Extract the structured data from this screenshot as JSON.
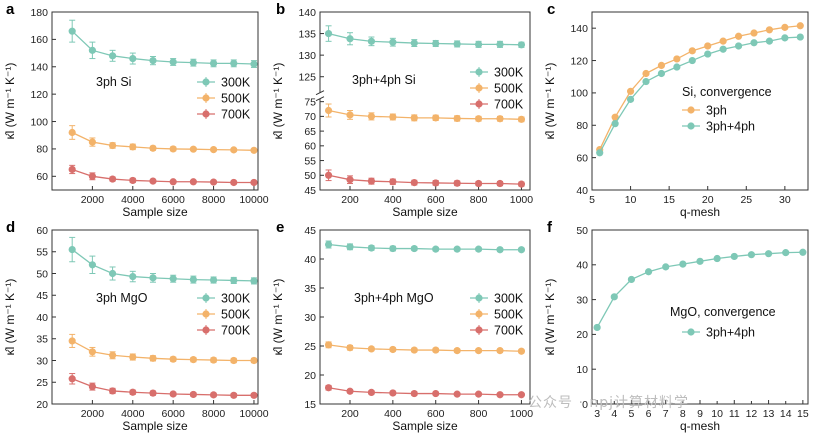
{
  "watermark": "公众号 · npj计算材料学",
  "colors": {
    "300K": "#7ec8b6",
    "500K": "#f3b36a",
    "700K": "#d86f6c",
    "3ph": "#f3b36a",
    "3ph+4ph": "#7ec8b6"
  },
  "chart_data": [
    {
      "id": "a",
      "type": "scatter",
      "panel_label": "a",
      "ylabel": "κ̂l (W m⁻¹ K⁻¹)",
      "xlabel": "Sample size",
      "xlim": [
        0,
        10200
      ],
      "ylim": [
        50,
        180
      ],
      "xticks": [
        2000,
        4000,
        6000,
        8000,
        10000
      ],
      "yticks": [
        60,
        80,
        100,
        120,
        140,
        160,
        180
      ],
      "annotation": "3ph Si",
      "legend_position": "right",
      "series": [
        {
          "name": "300K",
          "color": "#7ec8b6",
          "x": [
            1000,
            2000,
            3000,
            4000,
            5000,
            6000,
            7000,
            8000,
            9000,
            10000
          ],
          "y": [
            166,
            152,
            148,
            146,
            144.5,
            143.5,
            143,
            142.5,
            142.5,
            142
          ],
          "err": [
            8,
            6,
            4,
            4,
            3,
            2.5,
            2.5,
            2.5,
            2.5,
            2.5
          ]
        },
        {
          "name": "500K",
          "color": "#f3b36a",
          "x": [
            1000,
            2000,
            3000,
            4000,
            5000,
            6000,
            7000,
            8000,
            9000,
            10000
          ],
          "y": [
            92,
            85,
            82.5,
            81.5,
            80.5,
            80,
            79.8,
            79.5,
            79.3,
            79
          ],
          "err": [
            5,
            3,
            2,
            2,
            1.5,
            1.5,
            1,
            1,
            1,
            1
          ]
        },
        {
          "name": "700K",
          "color": "#d86f6c",
          "x": [
            1000,
            2000,
            3000,
            4000,
            5000,
            6000,
            7000,
            8000,
            9000,
            10000
          ],
          "y": [
            65,
            60,
            58,
            57,
            56.5,
            56,
            56,
            55.8,
            55.5,
            55.5
          ],
          "err": [
            3,
            2.5,
            1.5,
            1.5,
            1,
            1,
            1,
            1,
            1,
            1
          ]
        }
      ]
    },
    {
      "id": "b",
      "type": "scatter",
      "panel_label": "b",
      "ylabel": "κ̂l (W m⁻¹ K⁻¹)",
      "xlabel": "Sample size",
      "xlim": [
        60,
        1040
      ],
      "ylim": [
        45,
        140
      ],
      "axis_break": true,
      "xticks": [
        200,
        400,
        600,
        800,
        1000
      ],
      "yticks_upper": [
        125,
        130,
        135,
        140
      ],
      "yticks_lower": [
        45,
        50,
        55,
        60,
        65,
        70,
        75
      ],
      "annotation": "3ph+4ph Si",
      "legend_position": "right",
      "series": [
        {
          "name": "300K",
          "color": "#7ec8b6",
          "x": [
            100,
            200,
            300,
            400,
            500,
            600,
            700,
            800,
            900,
            1000
          ],
          "y": [
            135,
            133.8,
            133.2,
            133,
            132.8,
            132.7,
            132.6,
            132.5,
            132.5,
            132.4
          ],
          "err": [
            1.8,
            1.4,
            1,
            0.9,
            0.8,
            0.7,
            0.7,
            0.7,
            0.7,
            0.6
          ]
        },
        {
          "name": "500K",
          "color": "#f3b36a",
          "x": [
            100,
            200,
            300,
            400,
            500,
            600,
            700,
            800,
            900,
            1000
          ],
          "y": [
            72,
            70.5,
            70,
            69.8,
            69.5,
            69.5,
            69.3,
            69.2,
            69.2,
            69
          ],
          "err": [
            2.2,
            1.5,
            1.2,
            1,
            1,
            0.9,
            0.9,
            0.8,
            0.8,
            0.8
          ]
        },
        {
          "name": "700K",
          "color": "#d86f6c",
          "x": [
            100,
            200,
            300,
            400,
            500,
            600,
            700,
            800,
            900,
            1000
          ],
          "y": [
            50,
            48.5,
            48,
            47.8,
            47.5,
            47.4,
            47.3,
            47.2,
            47.2,
            47
          ],
          "err": [
            1.8,
            1.3,
            1,
            0.9,
            0.8,
            0.8,
            0.8,
            0.7,
            0.7,
            0.7
          ]
        }
      ]
    },
    {
      "id": "c",
      "type": "line",
      "panel_label": "c",
      "ylabel": "κ̂l (W m⁻¹ K⁻¹)",
      "xlabel": "q-mesh",
      "xlim": [
        5,
        33
      ],
      "ylim": [
        40,
        150
      ],
      "xticks": [
        5,
        10,
        15,
        20,
        25,
        30
      ],
      "yticks": [
        40,
        60,
        80,
        100,
        120,
        140
      ],
      "annotation": "Si, convergence",
      "legend_position": "center-right",
      "series": [
        {
          "name": "3ph",
          "color": "#f3b36a",
          "x": [
            6,
            8,
            10,
            12,
            14,
            16,
            18,
            20,
            22,
            24,
            26,
            28,
            30,
            32
          ],
          "y": [
            65,
            85,
            101,
            112,
            117,
            121,
            126,
            129,
            132,
            135,
            137,
            139,
            140.5,
            141.5
          ]
        },
        {
          "name": "3ph+4ph",
          "color": "#7ec8b6",
          "x": [
            6,
            8,
            10,
            12,
            14,
            16,
            18,
            20,
            22,
            24,
            26,
            28,
            30,
            32
          ],
          "y": [
            63,
            81,
            96,
            107,
            112,
            116,
            120,
            124,
            127,
            129,
            131,
            132,
            134,
            134.5
          ]
        }
      ]
    },
    {
      "id": "d",
      "type": "scatter",
      "panel_label": "d",
      "ylabel": "κ̂l (W m⁻¹ K⁻¹)",
      "xlabel": "Sample size",
      "xlim": [
        0,
        10200
      ],
      "ylim": [
        20,
        60
      ],
      "xticks": [
        2000,
        4000,
        6000,
        8000,
        10000
      ],
      "yticks": [
        20,
        25,
        30,
        35,
        40,
        45,
        50,
        55,
        60
      ],
      "annotation": "3ph MgO",
      "legend_position": "right",
      "series": [
        {
          "name": "300K",
          "color": "#7ec8b6",
          "x": [
            1000,
            2000,
            3000,
            4000,
            5000,
            6000,
            7000,
            8000,
            9000,
            10000
          ],
          "y": [
            55.5,
            52,
            50,
            49.3,
            49,
            48.8,
            48.6,
            48.5,
            48.4,
            48.3
          ],
          "err": [
            2.8,
            2,
            1.5,
            1.2,
            1,
            0.8,
            0.8,
            0.7,
            0.7,
            0.7
          ]
        },
        {
          "name": "500K",
          "color": "#f3b36a",
          "x": [
            1000,
            2000,
            3000,
            4000,
            5000,
            6000,
            7000,
            8000,
            9000,
            10000
          ],
          "y": [
            34.5,
            32,
            31.2,
            30.8,
            30.5,
            30.3,
            30.2,
            30.1,
            30,
            30
          ],
          "err": [
            1.5,
            1,
            0.8,
            0.7,
            0.6,
            0.5,
            0.5,
            0.5,
            0.5,
            0.5
          ]
        },
        {
          "name": "700K",
          "color": "#d86f6c",
          "x": [
            1000,
            2000,
            3000,
            4000,
            5000,
            6000,
            7000,
            8000,
            9000,
            10000
          ],
          "y": [
            25.8,
            24,
            23,
            22.7,
            22.5,
            22.3,
            22.2,
            22.1,
            22,
            22
          ],
          "err": [
            1.2,
            0.8,
            0.6,
            0.5,
            0.5,
            0.4,
            0.4,
            0.4,
            0.4,
            0.4
          ]
        }
      ]
    },
    {
      "id": "e",
      "type": "scatter",
      "panel_label": "e",
      "ylabel": "κ̂l (W m⁻¹ K⁻¹)",
      "xlabel": "Sample size",
      "xlim": [
        60,
        1040
      ],
      "ylim": [
        15,
        45
      ],
      "xticks": [
        200,
        400,
        600,
        800,
        1000
      ],
      "yticks": [
        15,
        20,
        25,
        30,
        35,
        40,
        45
      ],
      "annotation": "3ph+4ph MgO",
      "legend_position": "right",
      "series": [
        {
          "name": "300K",
          "color": "#7ec8b6",
          "x": [
            100,
            200,
            300,
            400,
            500,
            600,
            700,
            800,
            900,
            1000
          ],
          "y": [
            42.5,
            42.1,
            41.9,
            41.8,
            41.8,
            41.7,
            41.7,
            41.7,
            41.6,
            41.6
          ],
          "err": [
            0.6,
            0.5,
            0.4,
            0.4,
            0.3,
            0.3,
            0.3,
            0.3,
            0.3,
            0.3
          ]
        },
        {
          "name": "500K",
          "color": "#f3b36a",
          "x": [
            100,
            200,
            300,
            400,
            500,
            600,
            700,
            800,
            900,
            1000
          ],
          "y": [
            25.2,
            24.7,
            24.5,
            24.4,
            24.3,
            24.3,
            24.2,
            24.2,
            24.2,
            24.1
          ],
          "err": [
            0.5,
            0.4,
            0.3,
            0.3,
            0.3,
            0.3,
            0.3,
            0.3,
            0.3,
            0.3
          ]
        },
        {
          "name": "700K",
          "color": "#d86f6c",
          "x": [
            100,
            200,
            300,
            400,
            500,
            600,
            700,
            800,
            900,
            1000
          ],
          "y": [
            17.8,
            17.2,
            17,
            16.9,
            16.8,
            16.8,
            16.7,
            16.7,
            16.6,
            16.6
          ],
          "err": [
            0.4,
            0.3,
            0.3,
            0.3,
            0.3,
            0.2,
            0.2,
            0.2,
            0.2,
            0.2
          ]
        }
      ]
    },
    {
      "id": "f",
      "type": "line",
      "panel_label": "f",
      "ylabel": "κ̂l (W m⁻¹ K⁻¹)",
      "xlabel": "q-mesh",
      "xlim": [
        2.7,
        15.3
      ],
      "ylim": [
        0,
        50
      ],
      "xticks": [
        3,
        5,
        7,
        9,
        11,
        13,
        15
      ],
      "xticks_minor": [
        4,
        6,
        8,
        10,
        12,
        14
      ],
      "yticks": [
        0,
        10,
        20,
        30,
        40,
        50
      ],
      "annotation": "MgO, convergence",
      "legend_position": "center-right",
      "series": [
        {
          "name": "3ph+4ph",
          "color": "#7ec8b6",
          "x": [
            3,
            4,
            5,
            6,
            7,
            8,
            9,
            10,
            11,
            12,
            13,
            14,
            15
          ],
          "y": [
            22,
            30.8,
            35.8,
            38,
            39.4,
            40.2,
            41,
            41.8,
            42.4,
            42.9,
            43.2,
            43.5,
            43.6
          ]
        }
      ]
    }
  ]
}
